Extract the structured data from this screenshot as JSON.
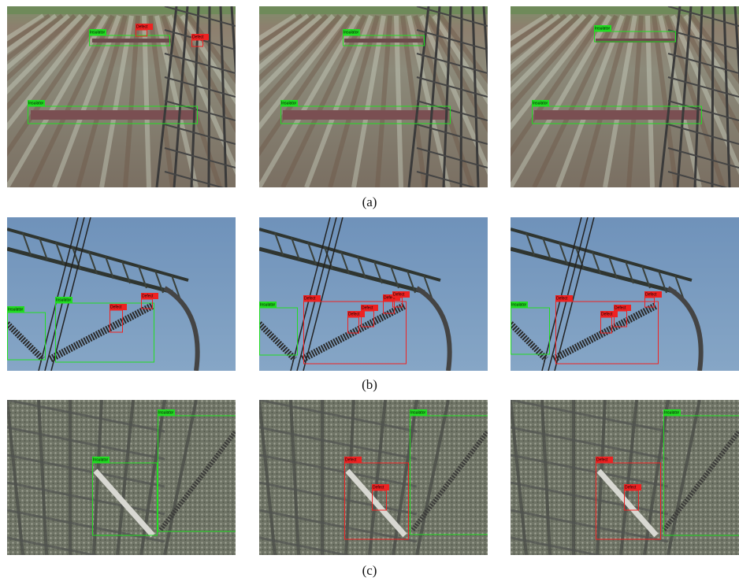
{
  "rows": [
    {
      "caption": "(a)",
      "images": [
        {
          "labels": [
            "Insulator",
            "Defect",
            "Defect",
            "Insulator"
          ]
        },
        {
          "labels": [
            "Insulator",
            "Insulator"
          ]
        },
        {
          "labels": [
            "Insulator",
            "Insulator"
          ]
        }
      ]
    },
    {
      "caption": "(b)",
      "images": [
        {
          "labels": [
            "Insulator",
            "Insulator",
            "Defect",
            "Defect"
          ]
        },
        {
          "labels": [
            "Insulator",
            "Defect",
            "Defect",
            "Defect",
            "Defect",
            "Defect"
          ]
        },
        {
          "labels": [
            "Insulator",
            "Defect",
            "Defect",
            "Defect",
            "Defect"
          ]
        }
      ]
    },
    {
      "caption": "(c)",
      "images": [
        {
          "labels": [
            "Insulator",
            "Insulator"
          ]
        },
        {
          "labels": [
            "Defect",
            "Defect",
            "Insulator"
          ]
        },
        {
          "labels": [
            "Defect",
            "Defect",
            "Insulator"
          ]
        }
      ]
    }
  ]
}
